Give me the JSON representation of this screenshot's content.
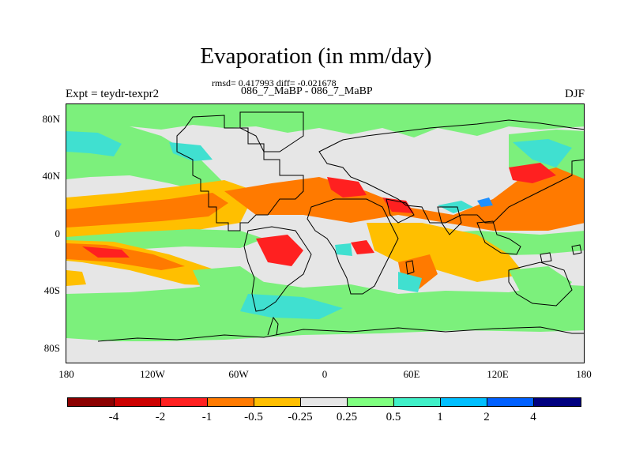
{
  "title": "Evaporation (in mm/day)",
  "stats": "rmsd= 0.417993 diff= -0.021678",
  "case": "086_7_MaBP - 086_7_MaBP",
  "left_label": "Expt = teydr-texpr2",
  "right_label": "DJF",
  "y_ticks": [
    "80N",
    "40N",
    "0",
    "40S",
    "80S"
  ],
  "x_ticks": [
    "180",
    "120W",
    "60W",
    "0",
    "60E",
    "120E",
    "180"
  ],
  "colorbar": {
    "colors": [
      "#8b0000",
      "#cc0000",
      "#ff2020",
      "#ff7a00",
      "#ffbf00",
      "#e6e6e6",
      "#7fff7f",
      "#40f0c8",
      "#00bfff",
      "#0060ff",
      "#000080"
    ],
    "labels": [
      "-4",
      "-2",
      "-1",
      "-0.5",
      "-0.25",
      "0.25",
      "0.5",
      "1",
      "2",
      "4"
    ]
  },
  "map_colors": {
    "background": "#e6e6e6",
    "green": "#7cf07c",
    "cyan": "#40e0d0",
    "light_orange": "#ffbf00",
    "orange": "#ff7a00",
    "red": "#ff2020",
    "blue": "#1e90ff",
    "coast": "#000000"
  }
}
